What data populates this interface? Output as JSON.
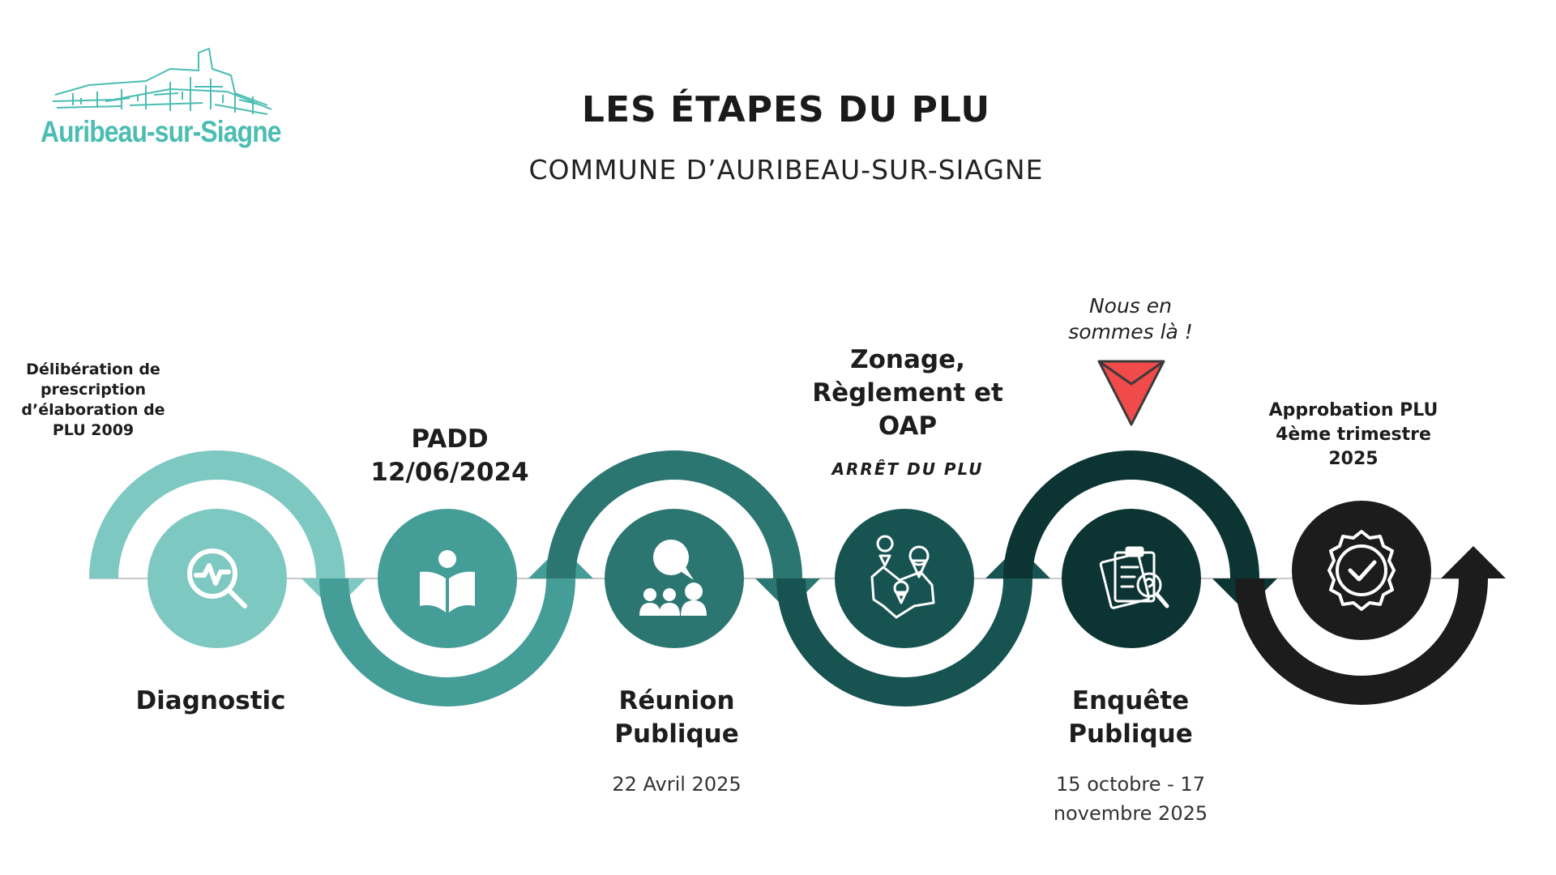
{
  "logo": {
    "text": "Auribeau-sur-Siagne",
    "color": "#4bbdb2"
  },
  "header": {
    "title": "LES ÉTAPES DU PLU",
    "subtitle": "COMMUNE D’AURIBEAU-SUR-SIAGNE"
  },
  "colors": {
    "step1": "#7ec8c2",
    "step2": "#459d98",
    "step3": "#2b7670",
    "step4": "#175451",
    "step5": "#0c3433",
    "step6": "#1c1c1c",
    "marker": "#f04a4a"
  },
  "steps": {
    "top_1": "Délibération de prescription d’élaboration de PLU 2009",
    "top_2": "PADD 12/06/2024",
    "top_3": "Zonage, Règlement et OAP",
    "top_3_sub": "ARRÊT DU PLU",
    "marker_note": "Nous en sommes là !",
    "top_5": "Approbation PLU 4ème trimestre 2025",
    "bottom_1": "Diagnostic",
    "bottom_2": "Réunion Publique",
    "bottom_2_date": "22 Avril 2025",
    "bottom_3": "Enquête Publique",
    "bottom_3_date": "15 octobre - 17 novembre 2025"
  },
  "icons": [
    "analysis-magnifier-icon",
    "open-book-reader-icon",
    "meeting-people-icon",
    "map-pins-icon",
    "clipboard-question-icon",
    "check-badge-icon"
  ]
}
